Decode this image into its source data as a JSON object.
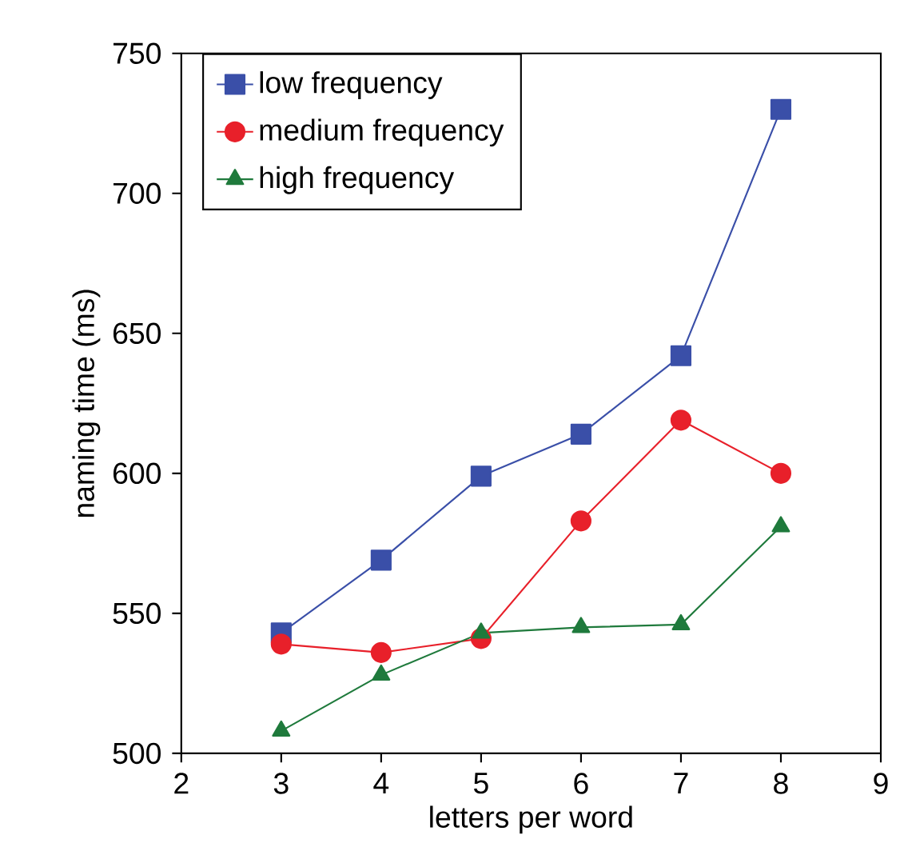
{
  "chart_data": {
    "type": "line",
    "xlabel": "letters per word",
    "ylabel": "naming time (ms)",
    "x": [
      3,
      4,
      5,
      6,
      7,
      8
    ],
    "series": [
      {
        "name": "low frequency",
        "color": "#3a4fa8",
        "marker": "square",
        "values": [
          543,
          569,
          599,
          614,
          642,
          730
        ]
      },
      {
        "name": "medium frequency",
        "color": "#e8202a",
        "marker": "circle",
        "values": [
          539,
          536,
          541,
          583,
          619,
          600
        ]
      },
      {
        "name": "high frequency",
        "color": "#1f7a3c",
        "marker": "triangle",
        "values": [
          508,
          528,
          543,
          545,
          546,
          581
        ]
      }
    ],
    "xlim": [
      2,
      9
    ],
    "ylim": [
      500,
      750
    ],
    "xticks": [
      2,
      3,
      4,
      5,
      6,
      7,
      8,
      9
    ],
    "yticks": [
      500,
      550,
      600,
      650,
      700,
      750
    ],
    "legend": "top left",
    "grid": false,
    "line_style": "solid"
  }
}
